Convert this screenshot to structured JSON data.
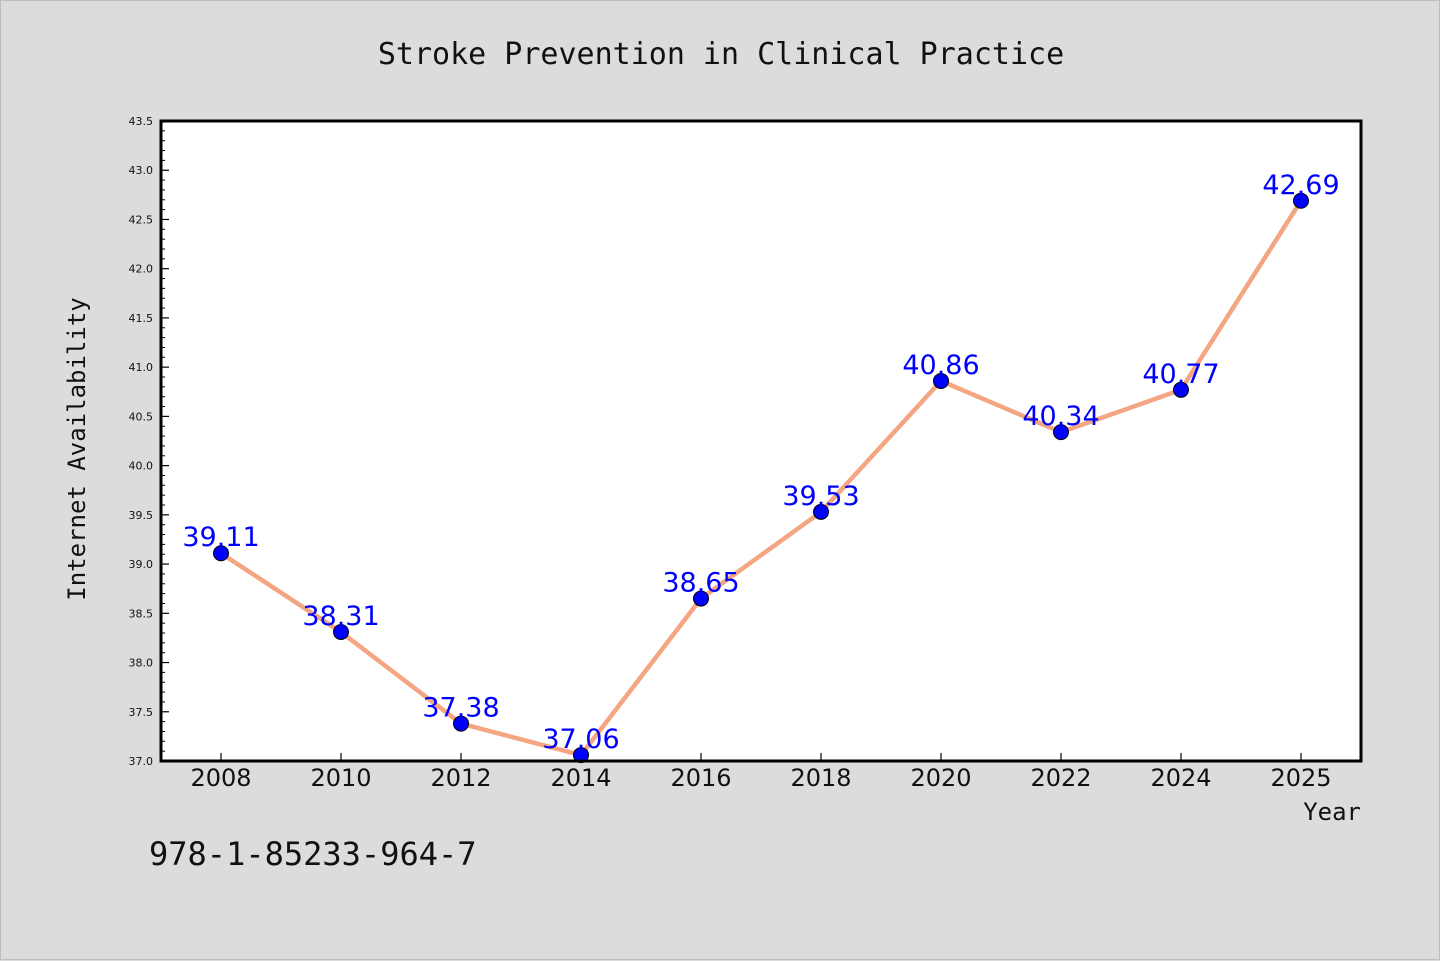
{
  "figure": {
    "background": "#dcdcdc",
    "plot_background": "#ffffff",
    "isbn": "978-1-85233-964-7"
  },
  "chart_data": {
    "type": "line",
    "title": "Stroke Prevention in Clinical Practice",
    "xlabel": "Year",
    "ylabel": "Internet Availability",
    "x": [
      "2008",
      "2010",
      "2012",
      "2014",
      "2016",
      "2018",
      "2020",
      "2022",
      "2024",
      "2025"
    ],
    "series": [
      {
        "values": [
          39.11,
          38.31,
          37.38,
          37.06,
          38.65,
          39.53,
          40.86,
          40.34,
          40.77,
          42.69
        ],
        "data_labels": [
          "39.11",
          "38.31",
          "37.38",
          "37.06",
          "38.65",
          "39.53",
          "40.86",
          "40.34",
          "40.77",
          "42.69"
        ],
        "line_color": "#f4a582",
        "marker_color": "#0000ff",
        "label_color": "#0000ff"
      }
    ],
    "ylim": [
      37.0,
      43.5
    ],
    "yticks": [
      "37.0",
      "37.5",
      "38.0",
      "38.5",
      "39.0",
      "39.5",
      "40.0",
      "40.5",
      "41.0",
      "41.5",
      "42.0",
      "42.5",
      "43.0",
      "43.5"
    ],
    "grid": false,
    "legend": "none"
  }
}
